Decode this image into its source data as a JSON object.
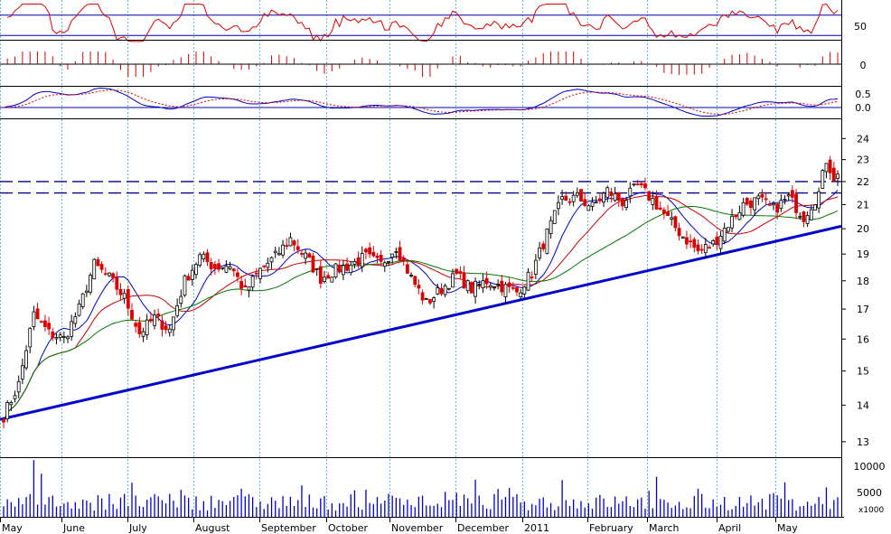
{
  "chart_data": {
    "type": "candlestick",
    "months": [
      "May",
      "June",
      "July",
      "August",
      "September",
      "October",
      "November",
      "December",
      "2011",
      "February",
      "March",
      "April",
      "May"
    ],
    "price_axis": {
      "scale": "log",
      "ticks": [
        "24",
        "23",
        "22",
        "21",
        "20",
        "19",
        "18",
        "17",
        "16",
        "15",
        "14",
        "13"
      ],
      "ylim": [
        12.6,
        25
      ]
    },
    "volume_axis": {
      "ticks": [
        "10000",
        "5000"
      ],
      "unit_label": "x1000",
      "ylim": [
        0,
        11000
      ]
    },
    "rsi_panel": {
      "ticks": [
        "50"
      ],
      "levels": [
        70,
        30
      ],
      "ylim": [
        0,
        100
      ]
    },
    "momentum_panel": {
      "ticks": [
        "0"
      ]
    },
    "macd_panel": {
      "ticks": [
        "0.5",
        "0.0"
      ]
    },
    "support_levels": [
      22.0,
      21.5
    ],
    "trendline": {
      "start": 13.6,
      "end": 20.1
    },
    "price_path_anchors": [
      [
        0,
        13.7
      ],
      [
        4,
        14.6
      ],
      [
        8,
        16.8
      ],
      [
        12,
        16.2
      ],
      [
        16,
        16.0
      ],
      [
        20,
        17.0
      ],
      [
        24,
        18.6
      ],
      [
        28,
        18.1
      ],
      [
        32,
        17.4
      ],
      [
        36,
        16.2
      ],
      [
        40,
        16.7
      ],
      [
        44,
        16.3
      ],
      [
        48,
        18.0
      ],
      [
        52,
        18.9
      ],
      [
        56,
        18.5
      ],
      [
        60,
        18.6
      ],
      [
        64,
        17.6
      ],
      [
        68,
        18.4
      ],
      [
        72,
        18.9
      ],
      [
        76,
        19.6
      ],
      [
        80,
        18.9
      ],
      [
        84,
        18.1
      ],
      [
        88,
        18.4
      ],
      [
        92,
        18.6
      ],
      [
        96,
        18.9
      ],
      [
        100,
        18.6
      ],
      [
        104,
        19.3
      ],
      [
        108,
        18.1
      ],
      [
        112,
        17.2
      ],
      [
        116,
        17.7
      ],
      [
        120,
        18.2
      ],
      [
        124,
        17.7
      ],
      [
        128,
        18.0
      ],
      [
        132,
        17.8
      ],
      [
        136,
        17.6
      ],
      [
        140,
        18.3
      ],
      [
        144,
        19.8
      ],
      [
        148,
        21.2
      ],
      [
        152,
        21.3
      ],
      [
        156,
        20.9
      ],
      [
        160,
        21.6
      ],
      [
        164,
        21.1
      ],
      [
        168,
        21.8
      ],
      [
        172,
        21.2
      ],
      [
        176,
        20.4
      ],
      [
        180,
        19.7
      ],
      [
        184,
        19.1
      ],
      [
        188,
        19.4
      ],
      [
        192,
        20.2
      ],
      [
        196,
        21.0
      ],
      [
        200,
        21.2
      ],
      [
        204,
        20.8
      ],
      [
        208,
        21.3
      ],
      [
        212,
        20.5
      ],
      [
        216,
        21.5
      ],
      [
        218,
        23.0
      ],
      [
        220,
        22.2
      ]
    ],
    "moving_averages": [
      {
        "color": "#0000cc"
      },
      {
        "color": "#cc0000"
      },
      {
        "color": "#007700"
      }
    ],
    "colors": {
      "up": "#000000",
      "down": "#dd0000",
      "trendline": "#0000cc",
      "support": "#000080",
      "volume": "#0000cc",
      "indicator": "#dd0000",
      "grid": "#66bbdd"
    }
  }
}
